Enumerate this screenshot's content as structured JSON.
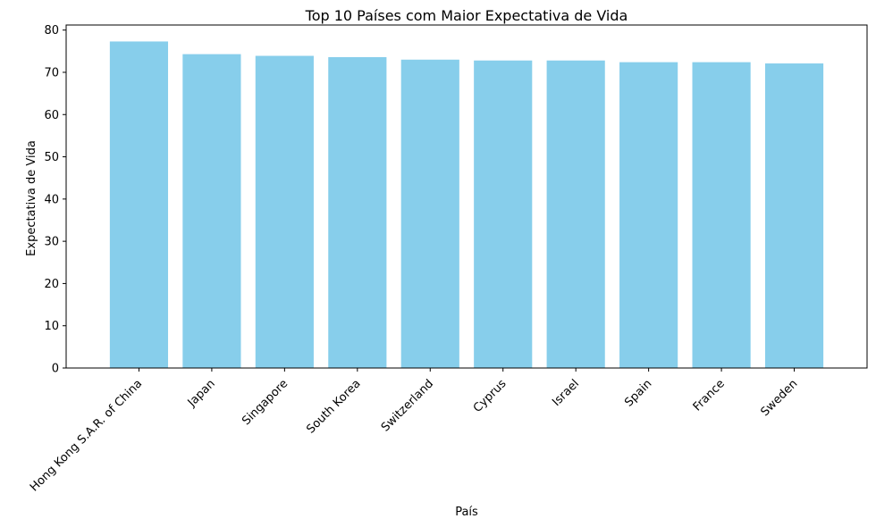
{
  "chart_data": {
    "type": "bar",
    "title": "Top 10 Países com Maior Expectativa de Vida",
    "xlabel": "País",
    "ylabel": "Expectativa de Vida",
    "categories": [
      "Hong Kong S.A.R. of China",
      "Japan",
      "Singapore",
      "South Korea",
      "Switzerland",
      "Cyprus",
      "Israel",
      "Spain",
      "France",
      "Sweden"
    ],
    "values": [
      77.3,
      74.3,
      73.9,
      73.6,
      73.0,
      72.8,
      72.8,
      72.4,
      72.4,
      72.1
    ],
    "yticks": [
      0,
      10,
      20,
      30,
      40,
      50,
      60,
      70,
      80
    ],
    "ylim": [
      0,
      81.2
    ],
    "bar_color": "#87CEEB",
    "grid": false,
    "legend": "none"
  }
}
